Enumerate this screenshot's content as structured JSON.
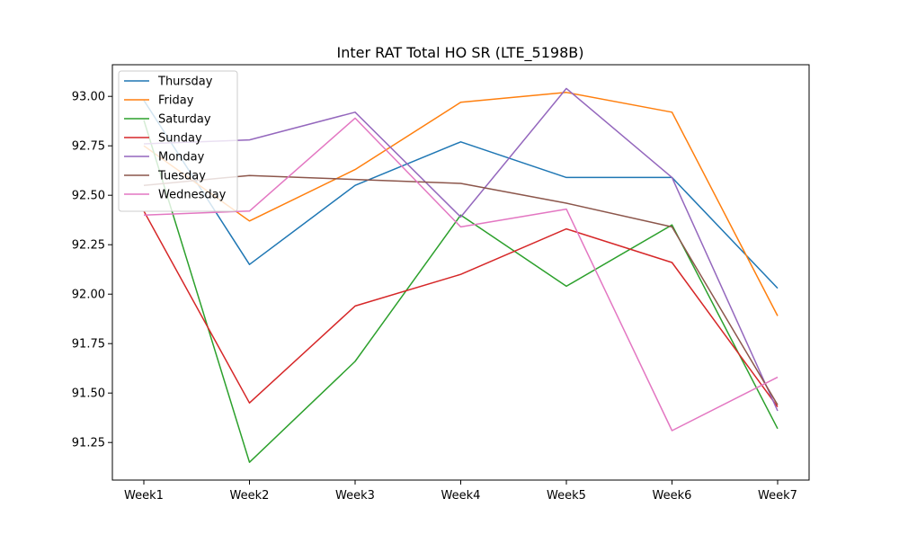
{
  "chart_data": {
    "type": "line",
    "title": "Inter RAT Total HO SR (LTE_5198B)",
    "xlabel": "",
    "ylabel": "",
    "categories": [
      "Week1",
      "Week2",
      "Week3",
      "Week4",
      "Week5",
      "Week6",
      "Week7"
    ],
    "ylim": [
      91.06,
      93.16
    ],
    "yticks": [
      91.25,
      91.5,
      91.75,
      92.0,
      92.25,
      92.5,
      92.75,
      93.0
    ],
    "ytick_labels": [
      "91.25",
      "91.50",
      "91.75",
      "92.00",
      "92.25",
      "92.50",
      "92.75",
      "93.00"
    ],
    "grid": false,
    "legend_position": "top-left",
    "series": [
      {
        "name": "Thursday",
        "color": "#1f77b4",
        "values": [
          92.98,
          92.15,
          92.55,
          92.77,
          92.59,
          92.59,
          92.03
        ]
      },
      {
        "name": "Friday",
        "color": "#ff7f0e",
        "values": [
          92.75,
          92.37,
          92.63,
          92.97,
          93.02,
          92.92,
          91.89
        ]
      },
      {
        "name": "Saturday",
        "color": "#2ca02c",
        "values": [
          92.88,
          91.15,
          91.66,
          92.4,
          92.04,
          92.35,
          91.32
        ]
      },
      {
        "name": "Sunday",
        "color": "#d62728",
        "values": [
          92.42,
          91.45,
          91.94,
          92.1,
          92.33,
          92.16,
          91.43
        ]
      },
      {
        "name": "Monday",
        "color": "#9467bd",
        "values": [
          92.76,
          92.78,
          92.92,
          92.39,
          93.04,
          92.59,
          91.41
        ]
      },
      {
        "name": "Tuesday",
        "color": "#8c564b",
        "values": [
          92.55,
          92.6,
          92.58,
          92.56,
          92.46,
          92.34,
          91.44
        ]
      },
      {
        "name": "Wednesday",
        "color": "#e377c2",
        "values": [
          92.4,
          92.42,
          92.89,
          92.34,
          92.43,
          91.31,
          91.58
        ]
      }
    ]
  }
}
